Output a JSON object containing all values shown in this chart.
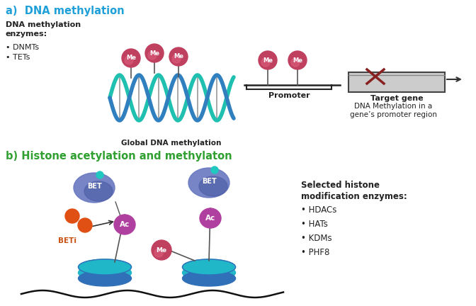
{
  "title_a": "a)  DNA methylation",
  "title_b": "b) Histone acetylation and methylaton",
  "label_global": "Global DNA methylation",
  "label_promoter_region": "DNA Methylation in a\ngene’s promoter region",
  "label_promoter": "Promoter",
  "label_target": "Target gene",
  "section_b_label1": "Selected histone\nmodification enzymes:",
  "section_b_label2": "• HDACs\n• HATs\n• KDMs\n• PHF8",
  "me_color": "#c04060",
  "dna_color1": "#20c0b0",
  "dna_color2": "#3080c0",
  "bet_color": "#7080c8",
  "ac_color": "#b040a0",
  "histone_color_teal": "#20b8c8",
  "histone_color_blue": "#3070b8",
  "beti_color_text": "#c85010",
  "orange_circle": "#e05015",
  "background": "#ffffff",
  "title_color_a": "#20a0d8",
  "title_color_b": "#30a030",
  "text_color": "#222222"
}
